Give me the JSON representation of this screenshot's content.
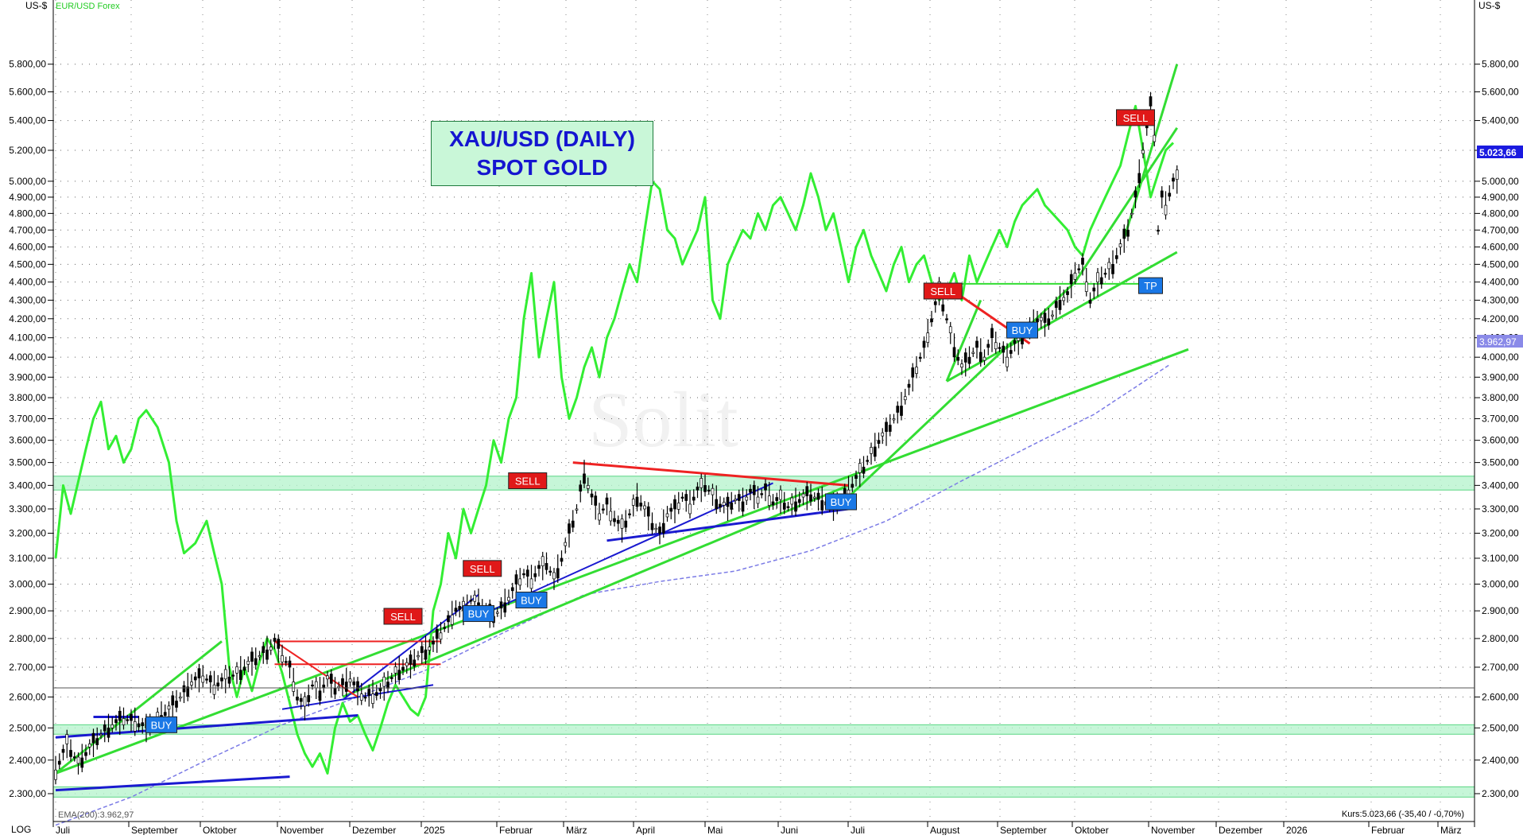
{
  "chart_data": {
    "type": "candlestick",
    "title": "XAU/USD (DAILY)",
    "subtitle": "SPOT GOLD",
    "currency_left": "US-$",
    "currency_right": "US-$",
    "comparison_series_name": "EUR/USD Forex",
    "scale_label": "LOG",
    "y_ticks": [
      "5.800,00",
      "5.600,00",
      "5.400,00",
      "5.200,00",
      "5.000,00",
      "4.900,00",
      "4.800,00",
      "4.700,00",
      "4.600,00",
      "4.500,00",
      "4.400,00",
      "4.300,00",
      "4.200,00",
      "4.100,00",
      "4.000,00",
      "3.900,00",
      "3.800,00",
      "3.700,00",
      "3.600,00",
      "3.500,00",
      "3.400,00",
      "3.300,00",
      "3.200,00",
      "3.100,00",
      "3.000,00",
      "2.900,00",
      "2.800,00",
      "2.700,00",
      "2.600,00",
      "2.500,00",
      "2.400,00",
      "2.300,00"
    ],
    "y_tick_values": [
      5800,
      5600,
      5400,
      5200,
      5000,
      4900,
      4800,
      4700,
      4600,
      4500,
      4400,
      4300,
      4200,
      4100,
      4000,
      3900,
      3800,
      3700,
      3600,
      3500,
      3400,
      3300,
      3200,
      3100,
      3000,
      2900,
      2800,
      2700,
      2600,
      2500,
      2400,
      2300
    ],
    "x_ticks": [
      "Juli",
      "September",
      "Oktober",
      "November",
      "Dezember",
      "2025",
      "Februar",
      "März",
      "April",
      "Mai",
      "Juni",
      "Juli",
      "August",
      "September",
      "Oktober",
      "November",
      "Dezember",
      "2026",
      "Februar",
      "März"
    ],
    "last_price_label": "5.023,66",
    "ema_price_label": "3.962,97",
    "ema_legend": "EMA(200):3.962,97",
    "kurs_label": "Kurs:5.023,66 (-35,40 / -0,70%)",
    "gold_path": [
      [
        0,
        2370
      ],
      [
        3,
        2450
      ],
      [
        6,
        2390
      ],
      [
        9,
        2440
      ],
      [
        12,
        2480
      ],
      [
        15,
        2510
      ],
      [
        18,
        2530
      ],
      [
        21,
        2520
      ],
      [
        24,
        2500
      ],
      [
        27,
        2530
      ],
      [
        30,
        2560
      ],
      [
        33,
        2600
      ],
      [
        36,
        2650
      ],
      [
        39,
        2670
      ],
      [
        42,
        2640
      ],
      [
        45,
        2660
      ],
      [
        48,
        2680
      ],
      [
        51,
        2710
      ],
      [
        54,
        2740
      ],
      [
        57,
        2770
      ],
      [
        58,
        2790
      ],
      [
        60,
        2740
      ],
      [
        62,
        2700
      ],
      [
        64,
        2600
      ],
      [
        66,
        2570
      ],
      [
        68,
        2640
      ],
      [
        70,
        2620
      ],
      [
        72,
        2660
      ],
      [
        74,
        2630
      ],
      [
        76,
        2640
      ],
      [
        78,
        2660
      ],
      [
        80,
        2620
      ],
      [
        82,
        2600
      ],
      [
        84,
        2610
      ],
      [
        86,
        2620
      ],
      [
        88,
        2650
      ],
      [
        90,
        2680
      ],
      [
        92,
        2700
      ],
      [
        94,
        2710
      ],
      [
        96,
        2740
      ],
      [
        98,
        2760
      ],
      [
        100,
        2780
      ],
      [
        102,
        2820
      ],
      [
        104,
        2860
      ],
      [
        106,
        2910
      ],
      [
        108,
        2900
      ],
      [
        110,
        2940
      ],
      [
        112,
        2930
      ],
      [
        114,
        2900
      ],
      [
        116,
        2880
      ],
      [
        118,
        2910
      ],
      [
        120,
        2950
      ],
      [
        122,
        3000
      ],
      [
        124,
        3040
      ],
      [
        126,
        3020
      ],
      [
        128,
        3060
      ],
      [
        130,
        3080
      ],
      [
        132,
        3020
      ],
      [
        134,
        3100
      ],
      [
        136,
        3200
      ],
      [
        138,
        3300
      ],
      [
        140,
        3450
      ],
      [
        142,
        3350
      ],
      [
        144,
        3280
      ],
      [
        146,
        3320
      ],
      [
        148,
        3260
      ],
      [
        150,
        3220
      ],
      [
        152,
        3280
      ],
      [
        154,
        3350
      ],
      [
        156,
        3300
      ],
      [
        158,
        3240
      ],
      [
        160,
        3200
      ],
      [
        162,
        3280
      ],
      [
        164,
        3300
      ],
      [
        166,
        3350
      ],
      [
        168,
        3320
      ],
      [
        170,
        3380
      ],
      [
        172,
        3400
      ],
      [
        174,
        3360
      ],
      [
        176,
        3320
      ],
      [
        178,
        3310
      ],
      [
        180,
        3340
      ],
      [
        182,
        3330
      ],
      [
        184,
        3370
      ],
      [
        186,
        3350
      ],
      [
        188,
        3380
      ],
      [
        190,
        3330
      ],
      [
        192,
        3340
      ],
      [
        194,
        3310
      ],
      [
        196,
        3330
      ],
      [
        198,
        3350
      ],
      [
        200,
        3360
      ],
      [
        202,
        3340
      ],
      [
        204,
        3330
      ],
      [
        206,
        3310
      ],
      [
        208,
        3340
      ],
      [
        210,
        3380
      ],
      [
        212,
        3430
      ],
      [
        214,
        3480
      ],
      [
        216,
        3540
      ],
      [
        218,
        3600
      ],
      [
        220,
        3640
      ],
      [
        222,
        3700
      ],
      [
        224,
        3760
      ],
      [
        226,
        3850
      ],
      [
        228,
        3950
      ],
      [
        230,
        4050
      ],
      [
        232,
        4200
      ],
      [
        234,
        4350
      ],
      [
        236,
        4200
      ],
      [
        238,
        4050
      ],
      [
        240,
        3950
      ],
      [
        242,
        4000
      ],
      [
        244,
        4050
      ],
      [
        246,
        4000
      ],
      [
        248,
        4100
      ],
      [
        250,
        4050
      ],
      [
        252,
        4000
      ],
      [
        254,
        4070
      ],
      [
        256,
        4100
      ],
      [
        258,
        4150
      ],
      [
        260,
        4200
      ],
      [
        262,
        4180
      ],
      [
        264,
        4220
      ],
      [
        266,
        4300
      ],
      [
        268,
        4330
      ],
      [
        270,
        4450
      ],
      [
        272,
        4500
      ],
      [
        274,
        4300
      ],
      [
        276,
        4400
      ],
      [
        278,
        4450
      ],
      [
        280,
        4500
      ],
      [
        282,
        4600
      ],
      [
        284,
        4700
      ],
      [
        286,
        4900
      ],
      [
        288,
        5200
      ],
      [
        290,
        5500
      ],
      [
        291,
        5300
      ],
      [
        292,
        4700
      ],
      [
        293,
        4900
      ],
      [
        294,
        4850
      ],
      [
        296,
        5000
      ],
      [
        298,
        5023
      ]
    ],
    "eurusd_path": [
      [
        0,
        3100
      ],
      [
        2,
        3400
      ],
      [
        4,
        3280
      ],
      [
        8,
        3560
      ],
      [
        10,
        3700
      ],
      [
        12,
        3780
      ],
      [
        14,
        3560
      ],
      [
        16,
        3620
      ],
      [
        18,
        3500
      ],
      [
        20,
        3560
      ],
      [
        22,
        3700
      ],
      [
        24,
        3740
      ],
      [
        27,
        3660
      ],
      [
        30,
        3500
      ],
      [
        32,
        3250
      ],
      [
        34,
        3120
      ],
      [
        37,
        3160
      ],
      [
        40,
        3250
      ],
      [
        42,
        3120
      ],
      [
        44,
        3000
      ],
      [
        46,
        2700
      ],
      [
        48,
        2600
      ],
      [
        50,
        2700
      ],
      [
        52,
        2620
      ],
      [
        54,
        2720
      ],
      [
        56,
        2800
      ],
      [
        58,
        2760
      ],
      [
        60,
        2680
      ],
      [
        62,
        2580
      ],
      [
        64,
        2480
      ],
      [
        66,
        2420
      ],
      [
        68,
        2380
      ],
      [
        70,
        2420
      ],
      [
        72,
        2360
      ],
      [
        74,
        2500
      ],
      [
        76,
        2580
      ],
      [
        78,
        2520
      ],
      [
        80,
        2540
      ],
      [
        82,
        2480
      ],
      [
        84,
        2430
      ],
      [
        86,
        2500
      ],
      [
        88,
        2580
      ],
      [
        90,
        2640
      ],
      [
        92,
        2600
      ],
      [
        94,
        2560
      ],
      [
        96,
        2540
      ],
      [
        98,
        2600
      ],
      [
        100,
        2900
      ],
      [
        102,
        3000
      ],
      [
        104,
        3200
      ],
      [
        106,
        3100
      ],
      [
        108,
        3300
      ],
      [
        110,
        3200
      ],
      [
        112,
        3300
      ],
      [
        114,
        3400
      ],
      [
        116,
        3600
      ],
      [
        118,
        3500
      ],
      [
        120,
        3700
      ],
      [
        122,
        3800
      ],
      [
        124,
        4200
      ],
      [
        126,
        4450
      ],
      [
        128,
        4000
      ],
      [
        130,
        4200
      ],
      [
        132,
        4400
      ],
      [
        134,
        3900
      ],
      [
        136,
        3700
      ],
      [
        138,
        3800
      ],
      [
        140,
        3950
      ],
      [
        142,
        4050
      ],
      [
        144,
        3900
      ],
      [
        146,
        4100
      ],
      [
        148,
        4200
      ],
      [
        150,
        4350
      ],
      [
        152,
        4500
      ],
      [
        154,
        4400
      ],
      [
        156,
        4700
      ],
      [
        158,
        5000
      ],
      [
        160,
        4950
      ],
      [
        162,
        4700
      ],
      [
        164,
        4650
      ],
      [
        166,
        4500
      ],
      [
        168,
        4600
      ],
      [
        170,
        4700
      ],
      [
        172,
        4900
      ],
      [
        174,
        4300
      ],
      [
        176,
        4200
      ],
      [
        178,
        4500
      ],
      [
        180,
        4600
      ],
      [
        182,
        4700
      ],
      [
        184,
        4650
      ],
      [
        186,
        4800
      ],
      [
        188,
        4700
      ],
      [
        190,
        4850
      ],
      [
        192,
        4900
      ],
      [
        194,
        4800
      ],
      [
        196,
        4700
      ],
      [
        198,
        4850
      ],
      [
        200,
        5050
      ],
      [
        202,
        4900
      ],
      [
        204,
        4700
      ],
      [
        206,
        4800
      ],
      [
        208,
        4600
      ],
      [
        210,
        4400
      ],
      [
        212,
        4600
      ],
      [
        214,
        4700
      ],
      [
        216,
        4550
      ],
      [
        218,
        4450
      ],
      [
        220,
        4350
      ],
      [
        222,
        4500
      ],
      [
        224,
        4600
      ],
      [
        226,
        4400
      ],
      [
        228,
        4500
      ],
      [
        230,
        4550
      ],
      [
        232,
        4400
      ],
      [
        234,
        4300
      ],
      [
        236,
        4350
      ],
      [
        238,
        4450
      ],
      [
        240,
        4300
      ],
      [
        242,
        4550
      ],
      [
        244,
        4400
      ],
      [
        246,
        4500
      ],
      [
        248,
        4600
      ],
      [
        250,
        4700
      ],
      [
        252,
        4600
      ],
      [
        254,
        4750
      ],
      [
        256,
        4850
      ],
      [
        258,
        4900
      ],
      [
        260,
        4950
      ],
      [
        262,
        4850
      ],
      [
        264,
        4800
      ],
      [
        266,
        4750
      ],
      [
        268,
        4700
      ],
      [
        270,
        4600
      ],
      [
        272,
        4550
      ],
      [
        274,
        4700
      ],
      [
        276,
        4800
      ],
      [
        278,
        4900
      ],
      [
        280,
        5000
      ],
      [
        282,
        5100
      ],
      [
        284,
        5300
      ],
      [
        286,
        5500
      ],
      [
        288,
        5200
      ],
      [
        290,
        4900
      ],
      [
        292,
        5050
      ],
      [
        294,
        5200
      ],
      [
        296,
        5250
      ]
    ],
    "ema_path": [
      [
        0,
        2210
      ],
      [
        20,
        2290
      ],
      [
        40,
        2400
      ],
      [
        60,
        2510
      ],
      [
        80,
        2600
      ],
      [
        100,
        2700
      ],
      [
        120,
        2830
      ],
      [
        140,
        2960
      ],
      [
        160,
        3010
      ],
      [
        180,
        3050
      ],
      [
        200,
        3130
      ],
      [
        220,
        3250
      ],
      [
        240,
        3420
      ],
      [
        260,
        3590
      ],
      [
        275,
        3720
      ],
      [
        290,
        3900
      ],
      [
        295,
        3962
      ]
    ],
    "signals": [
      {
        "label": "BUY",
        "type": "buy",
        "x": 28,
        "y": 2510
      },
      {
        "label": "SELL",
        "type": "sell",
        "x": 92,
        "y": 2880
      },
      {
        "label": "SELL",
        "type": "sell",
        "x": 113,
        "y": 3060
      },
      {
        "label": "BUY",
        "type": "buy",
        "x": 112,
        "y": 2890
      },
      {
        "label": "BUY",
        "type": "buy",
        "x": 126,
        "y": 2940
      },
      {
        "label": "SELL",
        "type": "sell",
        "x": 125,
        "y": 3420
      },
      {
        "label": "BUY",
        "type": "buy",
        "x": 208,
        "y": 3330
      },
      {
        "label": "SELL",
        "type": "sell",
        "x": 235,
        "y": 4350
      },
      {
        "label": "BUY",
        "type": "buy",
        "x": 256,
        "y": 4140
      },
      {
        "label": "SELL",
        "type": "sell",
        "x": 286,
        "y": 5420
      },
      {
        "label": "TP",
        "type": "buy",
        "x": 290,
        "y": 4380
      }
    ],
    "horizontal_bands": [
      [
        3380,
        3440
      ],
      [
        2480,
        2510
      ],
      [
        2290,
        2320
      ]
    ],
    "grid": true,
    "legend": "top-left"
  }
}
